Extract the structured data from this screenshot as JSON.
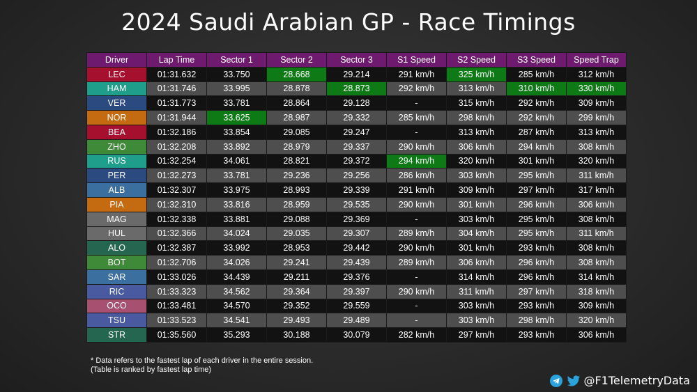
{
  "title": "2024 Saudi Arabian GP - Race Timings",
  "watermark": "F1TelemetryData",
  "colors": {
    "header_bg": "#6e1a6e",
    "fastest_highlight": "#0d7a16",
    "row_dark": "#121212",
    "row_light": "#4e4e4e"
  },
  "chart_data": {
    "type": "table",
    "title": "2024 Saudi Arabian GP - Race Timings",
    "columns": [
      "Driver",
      "Lap Time",
      "Sector 1",
      "Sector 2",
      "Sector 3",
      "S1 Speed",
      "S2 Speed",
      "S3 Speed",
      "Speed Trap"
    ],
    "rows": [
      {
        "driver": "LEC",
        "color": "#a4102e",
        "cells": [
          "01:31.632",
          "33.750",
          "28.668",
          "29.214",
          "291 km/h",
          "325 km/h",
          "285 km/h",
          "312 km/h"
        ],
        "best": [
          2,
          5
        ]
      },
      {
        "driver": "HAM",
        "color": "#1f9e8c",
        "cells": [
          "01:31.746",
          "33.995",
          "28.878",
          "28.873",
          "292 km/h",
          "313 km/h",
          "310 km/h",
          "330 km/h"
        ],
        "best": [
          3,
          6,
          7
        ]
      },
      {
        "driver": "VER",
        "color": "#2a4a80",
        "cells": [
          "01:31.773",
          "33.781",
          "28.864",
          "29.128",
          "-",
          "315 km/h",
          "292 km/h",
          "309 km/h"
        ],
        "best": []
      },
      {
        "driver": "NOR",
        "color": "#c46a10",
        "cells": [
          "01:31.944",
          "33.625",
          "28.987",
          "29.332",
          "285 km/h",
          "298 km/h",
          "292 km/h",
          "299 km/h"
        ],
        "best": [
          1
        ]
      },
      {
        "driver": "BEA",
        "color": "#a4102e",
        "cells": [
          "01:32.186",
          "33.854",
          "29.085",
          "29.247",
          "-",
          "313 km/h",
          "287 km/h",
          "313 km/h"
        ],
        "best": []
      },
      {
        "driver": "ZHO",
        "color": "#3f8a38",
        "cells": [
          "01:32.208",
          "33.892",
          "28.979",
          "29.337",
          "290 km/h",
          "306 km/h",
          "294 km/h",
          "308 km/h"
        ],
        "best": []
      },
      {
        "driver": "RUS",
        "color": "#1f9e8c",
        "cells": [
          "01:32.254",
          "34.061",
          "28.821",
          "29.372",
          "294 km/h",
          "320 km/h",
          "301 km/h",
          "320 km/h"
        ],
        "best": [
          4
        ]
      },
      {
        "driver": "PER",
        "color": "#2a4a80",
        "cells": [
          "01:32.273",
          "33.781",
          "29.236",
          "29.256",
          "286 km/h",
          "303 km/h",
          "295 km/h",
          "311 km/h"
        ],
        "best": []
      },
      {
        "driver": "ALB",
        "color": "#3a6fa0",
        "cells": [
          "01:32.307",
          "33.975",
          "28.993",
          "29.339",
          "291 km/h",
          "309 km/h",
          "297 km/h",
          "317 km/h"
        ],
        "best": []
      },
      {
        "driver": "PIA",
        "color": "#c46a10",
        "cells": [
          "01:32.310",
          "33.816",
          "28.959",
          "29.535",
          "290 km/h",
          "301 km/h",
          "296 km/h",
          "306 km/h"
        ],
        "best": []
      },
      {
        "driver": "MAG",
        "color": "#6a6a6a",
        "cells": [
          "01:32.338",
          "33.881",
          "29.088",
          "29.369",
          "-",
          "303 km/h",
          "295 km/h",
          "308 km/h"
        ],
        "best": []
      },
      {
        "driver": "HUL",
        "color": "#6a6a6a",
        "cells": [
          "01:32.366",
          "34.024",
          "29.035",
          "29.307",
          "289 km/h",
          "304 km/h",
          "295 km/h",
          "311 km/h"
        ],
        "best": []
      },
      {
        "driver": "ALO",
        "color": "#246650",
        "cells": [
          "01:32.387",
          "33.992",
          "28.953",
          "29.442",
          "290 km/h",
          "301 km/h",
          "293 km/h",
          "308 km/h"
        ],
        "best": []
      },
      {
        "driver": "BOT",
        "color": "#3f8a38",
        "cells": [
          "01:32.706",
          "34.026",
          "29.241",
          "29.439",
          "289 km/h",
          "306 km/h",
          "296 km/h",
          "308 km/h"
        ],
        "best": []
      },
      {
        "driver": "SAR",
        "color": "#3a6fa0",
        "cells": [
          "01:33.026",
          "34.439",
          "29.211",
          "29.376",
          "-",
          "314 km/h",
          "296 km/h",
          "314 km/h"
        ],
        "best": []
      },
      {
        "driver": "RIC",
        "color": "#4a5aa0",
        "cells": [
          "01:33.323",
          "34.562",
          "29.364",
          "29.397",
          "290 km/h",
          "311 km/h",
          "297 km/h",
          "318 km/h"
        ],
        "best": []
      },
      {
        "driver": "OCO",
        "color": "#a85070",
        "cells": [
          "01:33.481",
          "34.570",
          "29.352",
          "29.559",
          "-",
          "303 km/h",
          "293 km/h",
          "309 km/h"
        ],
        "best": []
      },
      {
        "driver": "TSU",
        "color": "#4a5aa0",
        "cells": [
          "01:33.523",
          "34.541",
          "29.493",
          "29.489",
          "-",
          "303 km/h",
          "298 km/h",
          "320 km/h"
        ],
        "best": []
      },
      {
        "driver": "STR",
        "color": "#246650",
        "cells": [
          "01:35.560",
          "35.293",
          "30.188",
          "30.079",
          "282 km/h",
          "297 km/h",
          "293 km/h",
          "306 km/h"
        ],
        "best": []
      }
    ]
  },
  "footnote": {
    "line1": "* Data refers to the fastest lap of each driver in the entire session.",
    "line2": "(Table is ranked by fastest lap time)"
  },
  "social": {
    "handle": "@F1TelemetryData",
    "icons": [
      "telegram-icon",
      "twitter-icon"
    ]
  }
}
